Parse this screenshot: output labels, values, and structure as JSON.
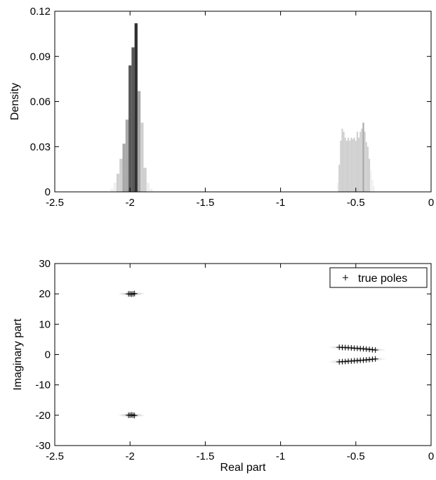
{
  "chart_data": [
    {
      "type": "bar",
      "ylabel": "Density",
      "xlim": [
        -2.5,
        0
      ],
      "ylim": [
        0,
        0.12
      ],
      "xticks": [
        "-2.5",
        "-2",
        "-1.5",
        "-1",
        "-0.5",
        "0"
      ],
      "xtick_values": [
        -2.5,
        -2,
        -1.5,
        -1,
        -0.5,
        0
      ],
      "yticks": [
        "0",
        "0.03",
        "0.06",
        "0.09",
        "0.12"
      ],
      "ytick_values": [
        0,
        0.03,
        0.06,
        0.09,
        0.12
      ],
      "grid": false,
      "colors": [
        "#f0f0f0",
        "#d0d0d0",
        "#a8a8a8",
        "#585858",
        "#303030"
      ],
      "series": [
        {
          "bins": [
            {
              "x": -2.12,
              "value": 0.002,
              "shade": 0
            },
            {
              "x": -2.1,
              "value": 0.006,
              "shade": 0
            },
            {
              "x": -2.08,
              "value": 0.012,
              "shade": 1
            },
            {
              "x": -2.06,
              "value": 0.022,
              "shade": 1
            },
            {
              "x": -2.04,
              "value": 0.032,
              "shade": 2
            },
            {
              "x": -2.02,
              "value": 0.048,
              "shade": 2
            },
            {
              "x": -2.0,
              "value": 0.084,
              "shade": 3
            },
            {
              "x": -1.98,
              "value": 0.096,
              "shade": 3
            },
            {
              "x": -1.96,
              "value": 0.112,
              "shade": 4
            },
            {
              "x": -1.94,
              "value": 0.067,
              "shade": 2
            },
            {
              "x": -1.92,
              "value": 0.046,
              "shade": 1
            },
            {
              "x": -1.9,
              "value": 0.016,
              "shade": 1
            },
            {
              "x": -1.88,
              "value": 0.006,
              "shade": 0
            },
            {
              "x": -1.86,
              "value": 0.002,
              "shade": 0
            }
          ]
        },
        {
          "bins": [
            {
              "x": -0.62,
              "value": 0.006,
              "shade": 0
            },
            {
              "x": -0.61,
              "value": 0.018,
              "shade": 1
            },
            {
              "x": -0.6,
              "value": 0.034,
              "shade": 1
            },
            {
              "x": -0.59,
              "value": 0.042,
              "shade": 1
            },
            {
              "x": -0.58,
              "value": 0.04,
              "shade": 1
            },
            {
              "x": -0.57,
              "value": 0.036,
              "shade": 1
            },
            {
              "x": -0.56,
              "value": 0.034,
              "shade": 1
            },
            {
              "x": -0.55,
              "value": 0.036,
              "shade": 1
            },
            {
              "x": -0.54,
              "value": 0.034,
              "shade": 1
            },
            {
              "x": -0.53,
              "value": 0.036,
              "shade": 1
            },
            {
              "x": -0.52,
              "value": 0.035,
              "shade": 1
            },
            {
              "x": -0.51,
              "value": 0.036,
              "shade": 1
            },
            {
              "x": -0.5,
              "value": 0.034,
              "shade": 1
            },
            {
              "x": -0.49,
              "value": 0.04,
              "shade": 1
            },
            {
              "x": -0.48,
              "value": 0.036,
              "shade": 1
            },
            {
              "x": -0.47,
              "value": 0.04,
              "shade": 1
            },
            {
              "x": -0.46,
              "value": 0.042,
              "shade": 1
            },
            {
              "x": -0.45,
              "value": 0.046,
              "shade": 2
            },
            {
              "x": -0.44,
              "value": 0.04,
              "shade": 1
            },
            {
              "x": -0.43,
              "value": 0.033,
              "shade": 1
            },
            {
              "x": -0.42,
              "value": 0.03,
              "shade": 1
            },
            {
              "x": -0.41,
              "value": 0.022,
              "shade": 1
            },
            {
              "x": -0.4,
              "value": 0.014,
              "shade": 0
            },
            {
              "x": -0.39,
              "value": 0.008,
              "shade": 0
            },
            {
              "x": -0.38,
              "value": 0.004,
              "shade": 0
            }
          ]
        }
      ]
    },
    {
      "type": "scatter",
      "xlabel": "Real part",
      "ylabel": "Imaginary part",
      "xlim": [
        -2.5,
        0
      ],
      "ylim": [
        -30,
        30
      ],
      "xticks": [
        "-2.5",
        "-2",
        "-1.5",
        "-1",
        "-0.5",
        "0"
      ],
      "xtick_values": [
        -2.5,
        -2,
        -1.5,
        -1,
        -0.5,
        0
      ],
      "yticks": [
        "-30",
        "-20",
        "-10",
        "0",
        "10",
        "20",
        "30"
      ],
      "ytick_values": [
        -30,
        -20,
        -10,
        0,
        10,
        20,
        30
      ],
      "grid": false,
      "legend_position": "top-right",
      "series": [
        {
          "name": "true poles",
          "marker": "+",
          "points": [
            [
              -2.0,
              20.0
            ],
            [
              -1.99,
              19.9
            ],
            [
              -1.98,
              20.0
            ],
            [
              -1.97,
              20.1
            ],
            [
              -2.01,
              20.0
            ],
            [
              -2.0,
              -20.0
            ],
            [
              -1.99,
              -19.9
            ],
            [
              -1.98,
              -20.0
            ],
            [
              -1.97,
              -20.1
            ],
            [
              -2.01,
              -20.0
            ],
            [
              -0.61,
              2.4
            ],
            [
              -0.59,
              2.35
            ],
            [
              -0.57,
              2.3
            ],
            [
              -0.55,
              2.25
            ],
            [
              -0.53,
              2.2
            ],
            [
              -0.51,
              2.1
            ],
            [
              -0.49,
              2.05
            ],
            [
              -0.47,
              1.95
            ],
            [
              -0.45,
              1.9
            ],
            [
              -0.43,
              1.8
            ],
            [
              -0.41,
              1.7
            ],
            [
              -0.39,
              1.6
            ],
            [
              -0.37,
              1.5
            ],
            [
              -0.61,
              -2.4
            ],
            [
              -0.59,
              -2.35
            ],
            [
              -0.57,
              -2.3
            ],
            [
              -0.55,
              -2.2
            ],
            [
              -0.53,
              -2.15
            ],
            [
              -0.51,
              -2.05
            ],
            [
              -0.49,
              -2.0
            ],
            [
              -0.47,
              -1.9
            ],
            [
              -0.45,
              -1.85
            ],
            [
              -0.43,
              -1.75
            ],
            [
              -0.41,
              -1.65
            ],
            [
              -0.39,
              -1.55
            ],
            [
              -0.37,
              -1.45
            ]
          ]
        }
      ]
    }
  ]
}
